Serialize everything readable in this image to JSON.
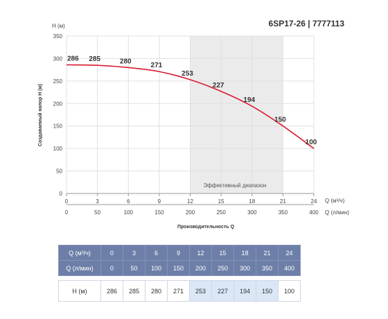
{
  "chart_data": {
    "type": "line",
    "title": "6SP17-26 | 7777113",
    "ylabel_top": "H (м)",
    "ylabel": "Создаваемый напор H (м)",
    "xlabel_unit1": "Q (м³/ч)",
    "xlabel_unit2": "Q (л/мин)",
    "xlabel": "Производительность Q",
    "x": [
      0,
      3,
      6,
      9,
      12,
      15,
      18,
      21,
      24
    ],
    "x_lmin": [
      0,
      50,
      100,
      150,
      200,
      250,
      300,
      350,
      400
    ],
    "series": [
      {
        "values": [
          286,
          285,
          280,
          271,
          253,
          227,
          194,
          150,
          100
        ]
      }
    ],
    "xlim": [
      0,
      24
    ],
    "ylim": [
      0,
      350
    ],
    "yticks": [
      0,
      50,
      100,
      150,
      200,
      250,
      300,
      350
    ],
    "grid": true,
    "efficient_range": {
      "from": 12,
      "to": 21,
      "label": "Эффективный диапазон"
    },
    "line_color": "#d81b2c",
    "band_color": "#ebebeb"
  },
  "table": {
    "q_m3_label": "Q (м³/ч)",
    "q_lmin_label": "Q (л/мин)",
    "h_label": "H (м)",
    "q_m3": [
      "0",
      "3",
      "6",
      "9",
      "12",
      "15",
      "18",
      "21",
      "24"
    ],
    "q_lmin": [
      "0",
      "50",
      "100",
      "150",
      "200",
      "250",
      "300",
      "350",
      "400"
    ],
    "h": [
      "286",
      "285",
      "280",
      "271",
      "253",
      "227",
      "194",
      "150",
      "100"
    ],
    "highlight": [
      false,
      false,
      false,
      false,
      true,
      true,
      true,
      true,
      false
    ],
    "header_color": "#6d7fa8",
    "highlight_color": "#dbe7f7"
  }
}
